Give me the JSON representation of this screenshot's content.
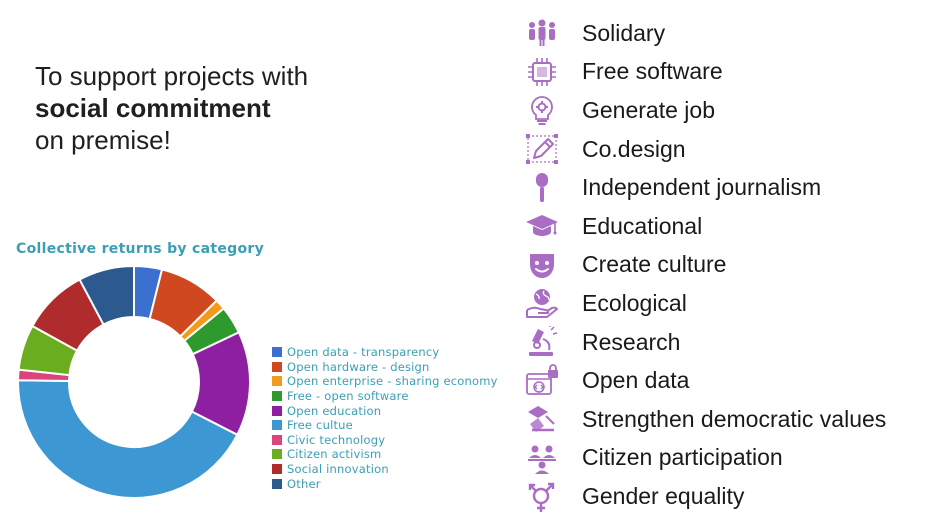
{
  "headline": {
    "line1": "To support projects with",
    "line2": "social commitment",
    "line3": "on premise!"
  },
  "chart_data": {
    "type": "pie",
    "title": "Collective returns by category",
    "donut": true,
    "legend_position": "right",
    "series": [
      {
        "name": "Open data - transparency",
        "value": 4,
        "color": "#3b6fd0"
      },
      {
        "name": "Open hardware - design",
        "value": 9,
        "color": "#d0481f"
      },
      {
        "name": "Open enterprise - sharing economy",
        "value": 1.5,
        "color": "#f29a1e"
      },
      {
        "name": "Free - open software",
        "value": 4,
        "color": "#2e9a2e"
      },
      {
        "name": "Open education",
        "value": 15,
        "color": "#8e1fa1"
      },
      {
        "name": "Free cultue",
        "value": 44,
        "color": "#3d97d3"
      },
      {
        "name": "Civic technology",
        "value": 1.5,
        "color": "#d9457c"
      },
      {
        "name": "Citizen activism",
        "value": 6.5,
        "color": "#6aad1f"
      },
      {
        "name": "Social innovation",
        "value": 9.5,
        "color": "#b02b2b"
      },
      {
        "name": "Other",
        "value": 8,
        "color": "#2d5a8e"
      }
    ]
  },
  "features": [
    {
      "label": "Solidary",
      "icon": "people-group-icon"
    },
    {
      "label": "Free software",
      "icon": "chip-icon"
    },
    {
      "label": "Generate job",
      "icon": "lightbulb-gear-icon"
    },
    {
      "label": "Co.design",
      "icon": "pencil-icon"
    },
    {
      "label": "Independent journalism",
      "icon": "microphone-icon"
    },
    {
      "label": "Educational",
      "icon": "graduation-cap-icon"
    },
    {
      "label": "Create culture",
      "icon": "theater-mask-icon"
    },
    {
      "label": "Ecological",
      "icon": "hand-globe-icon"
    },
    {
      "label": "Research",
      "icon": "microscope-icon"
    },
    {
      "label": "Open data",
      "icon": "code-lock-icon"
    },
    {
      "label": "Strengthen democratic values",
      "icon": "ballot-icon"
    },
    {
      "label": "Citizen participation",
      "icon": "citizens-icon"
    },
    {
      "label": "Gender equality",
      "icon": "gender-icon"
    }
  ],
  "colors": {
    "icon": "#a96dc4",
    "chart_text": "#3a9fb5"
  }
}
